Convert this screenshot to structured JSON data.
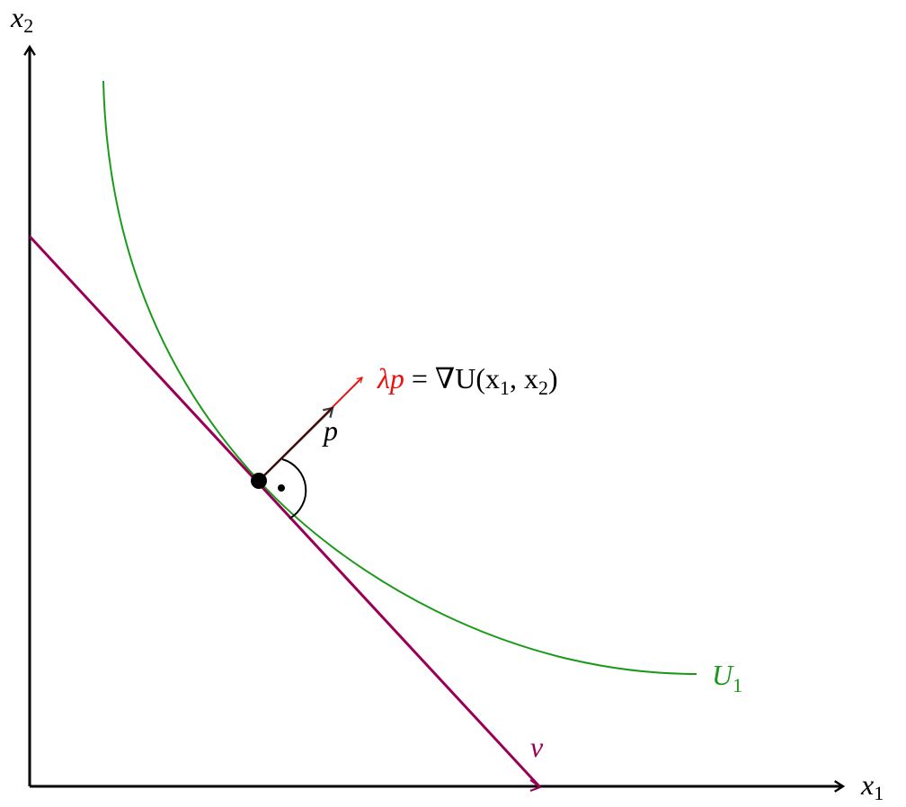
{
  "axes": {
    "x_label": {
      "base": "x",
      "sub": "1"
    },
    "y_label": {
      "base": "x",
      "sub": "2"
    }
  },
  "labels": {
    "gradient": {
      "lhs": "λp",
      "rhs": [
        "= ∇U(x",
        "1",
        ", x",
        "2",
        ")"
      ]
    },
    "price_vector": "p",
    "indifference_curve": {
      "base": "U",
      "sub": "1"
    },
    "direction_vector": "v⃗"
  }
}
